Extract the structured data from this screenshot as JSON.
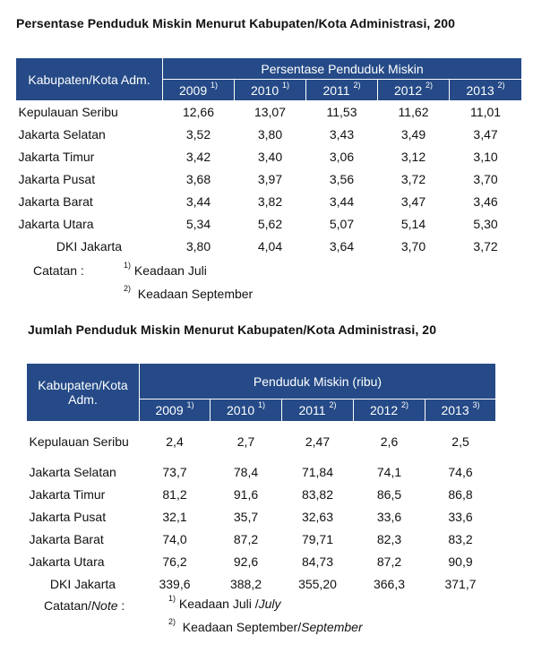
{
  "table1": {
    "title": "Persentase Penduduk Miskin Menurut Kabupaten/Kota Administrasi, 200",
    "col_header": "Kabupaten/Kota Adm.",
    "group_header": "Persentase Penduduk Miskin",
    "years": [
      {
        "year": "2009",
        "sup": "1)"
      },
      {
        "year": "2010",
        "sup": "1)"
      },
      {
        "year": "2011",
        "sup": "2)"
      },
      {
        "year": "2012",
        "sup": "2)"
      },
      {
        "year": "2013",
        "sup": "2)"
      }
    ],
    "rows": [
      {
        "name": "Kepulauan Seribu",
        "values": [
          "12,66",
          "13,07",
          "11,53",
          "11,62",
          "11,01"
        ]
      },
      {
        "name": "Jakarta Selatan",
        "values": [
          "3,52",
          "3,80",
          "3,43",
          "3,49",
          "3,47"
        ]
      },
      {
        "name": "Jakarta Timur",
        "values": [
          "3,42",
          "3,40",
          "3,06",
          "3,12",
          "3,10"
        ]
      },
      {
        "name": "Jakarta Pusat",
        "values": [
          "3,68",
          "3,97",
          "3,56",
          "3,72",
          "3,70"
        ]
      },
      {
        "name": "Jakarta Barat",
        "values": [
          "3,44",
          "3,82",
          "3,44",
          "3,47",
          "3,46"
        ]
      },
      {
        "name": "Jakarta Utara",
        "values": [
          "5,34",
          "5,62",
          "5,07",
          "5,14",
          "5,30"
        ]
      },
      {
        "name": "DKI Jakarta",
        "values": [
          "3,80",
          "4,04",
          "3,64",
          "3,70",
          "3,72"
        ]
      }
    ],
    "notes_label": "Catatan :",
    "notes": [
      {
        "sup": "1)",
        "text": "Keadaan Juli"
      },
      {
        "sup": "2)",
        "text": "Keadaan  September"
      }
    ]
  },
  "table2": {
    "title": "Jumlah Penduduk Miskin Menurut Kabupaten/Kota Administrasi, 20",
    "col_header_line1": "Kabupaten/Kota",
    "col_header_line2": "Adm.",
    "group_header": "Penduduk Miskin (ribu)",
    "years": [
      {
        "year": "2009",
        "sup": "1)"
      },
      {
        "year": "2010",
        "sup": "1)"
      },
      {
        "year": "2011",
        "sup": "2)"
      },
      {
        "year": "2012",
        "sup": "2)"
      },
      {
        "year": "2013",
        "sup": "3)"
      }
    ],
    "rows": [
      {
        "name": "Kepulauan Seribu",
        "values": [
          "2,4",
          "2,7",
          "2,47",
          "2,6",
          "2,5"
        ]
      },
      {
        "name": "Jakarta Selatan",
        "values": [
          "73,7",
          "78,4",
          "71,84",
          "74,1",
          "74,6"
        ]
      },
      {
        "name": "Jakarta Timur",
        "values": [
          "81,2",
          "91,6",
          "83,82",
          "86,5",
          "86,8"
        ]
      },
      {
        "name": "Jakarta Pusat",
        "values": [
          "32,1",
          "35,7",
          "32,63",
          "33,6",
          "33,6"
        ]
      },
      {
        "name": "Jakarta Barat",
        "values": [
          "74,0",
          "87,2",
          "79,71",
          "82,3",
          "83,2"
        ]
      },
      {
        "name": "Jakarta Utara",
        "values": [
          "76,2",
          "92,6",
          "84,73",
          "87,2",
          "90,9"
        ]
      },
      {
        "name": "DKI Jakarta",
        "values": [
          "339,6",
          "388,2",
          "355,20",
          "366,3",
          "371,7"
        ]
      }
    ],
    "notes_label": "Catatan/",
    "notes_label_en": "Note",
    "notes_label_colon": " :",
    "notes": [
      {
        "sup": "1)",
        "text": "Keadaan Juli /",
        "text_en": "July"
      },
      {
        "sup": "2)",
        "text": "Keadaan  September/",
        "text_en": "September"
      }
    ]
  },
  "colors": {
    "header_bg": "#254a87",
    "header_text": "#ffffff"
  }
}
